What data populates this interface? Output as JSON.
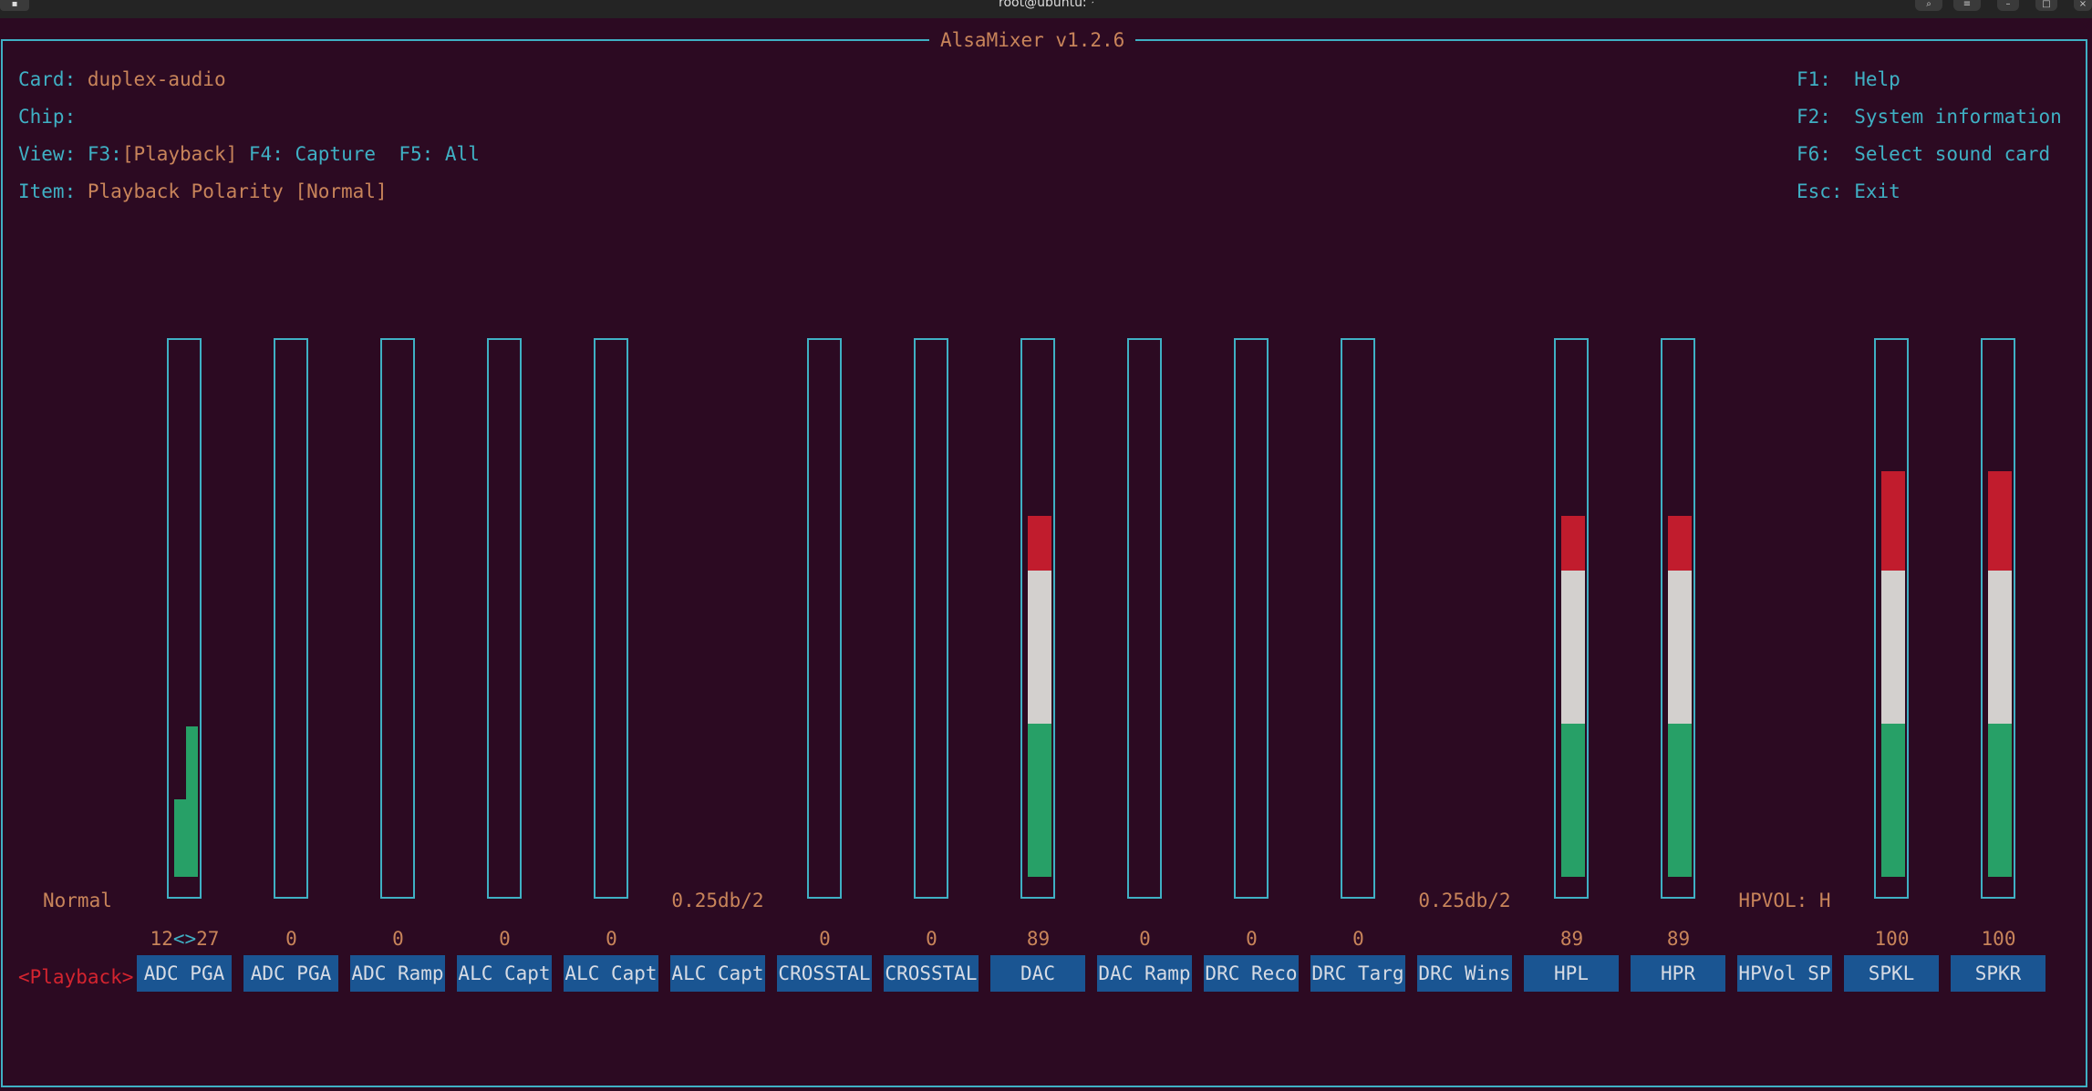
{
  "window": {
    "title": "root@ubuntu: ~"
  },
  "app": {
    "title": "AlsaMixer v1.2.6"
  },
  "header": {
    "card_label": "Card:",
    "card_value": "duplex-audio",
    "chip_label": "Chip:",
    "view_label": "View:",
    "view_f3": "F3:",
    "view_playback": "[Playback]",
    "view_f4": "F4:",
    "view_capture": "Capture",
    "view_f5": "F5:",
    "view_all": "All",
    "item_label": "Item:",
    "item_value": "Playback Polarity [Normal]"
  },
  "help": [
    {
      "key": "F1:",
      "text": "Help"
    },
    {
      "key": "F2:",
      "text": "System information"
    },
    {
      "key": "F6:",
      "text": "Select sound card"
    },
    {
      "key": "Esc:",
      "text": "Exit"
    }
  ],
  "tab_label": "<Playback>",
  "channels": [
    {
      "name": "ADC PGA",
      "value_left": "12",
      "value_sep": "<>",
      "value_right": "27",
      "level_left": 0.15,
      "level_right": 0.29,
      "bar": true
    },
    {
      "name": "ADC PGA",
      "value": "0",
      "level": 0,
      "bar": true
    },
    {
      "name": "ADC Ramp",
      "value": "0",
      "level": 0,
      "bar": true
    },
    {
      "name": "ALC Capt",
      "value": "0",
      "level": 0,
      "bar": true
    },
    {
      "name": "ALC Capt",
      "value": "0",
      "level": 0,
      "bar": true
    },
    {
      "name": "ALC Capt",
      "info": "0.25db/2",
      "bar": false
    },
    {
      "name": "CROSSTAL",
      "value": "0",
      "level": 0,
      "bar": true
    },
    {
      "name": "CROSSTAL",
      "value": "0",
      "level": 0,
      "bar": true
    },
    {
      "name": "DAC",
      "value": "89",
      "level": 0.89,
      "bar": true
    },
    {
      "name": "DAC Ramp",
      "value": "0",
      "level": 0,
      "bar": true
    },
    {
      "name": "DRC Reco",
      "value": "0",
      "level": 0,
      "bar": true
    },
    {
      "name": "DRC Targ",
      "value": "0",
      "level": 0,
      "bar": true
    },
    {
      "name": "DRC Wins",
      "info": "0.25db/2",
      "bar": false
    },
    {
      "name": "HPL",
      "value": "89",
      "level": 0.89,
      "bar": true
    },
    {
      "name": "HPR",
      "value": "89",
      "level": 0.89,
      "bar": true
    },
    {
      "name": "HPVol SP",
      "info": "HPVOL: H",
      "bar": false
    },
    {
      "name": "SPKL",
      "value": "100",
      "level": 1.0,
      "bar": true
    },
    {
      "name": "SPKR",
      "value": "100",
      "level": 1.0,
      "bar": true
    }
  ],
  "first_info": "Normal",
  "colors": {
    "border": "#3fb0c4",
    "value": "#c8845a",
    "green": "#27a067",
    "white": "#d3d0ce",
    "red": "#c11c2d",
    "label_bg": "#1a5592",
    "background": "#2c0a22"
  }
}
